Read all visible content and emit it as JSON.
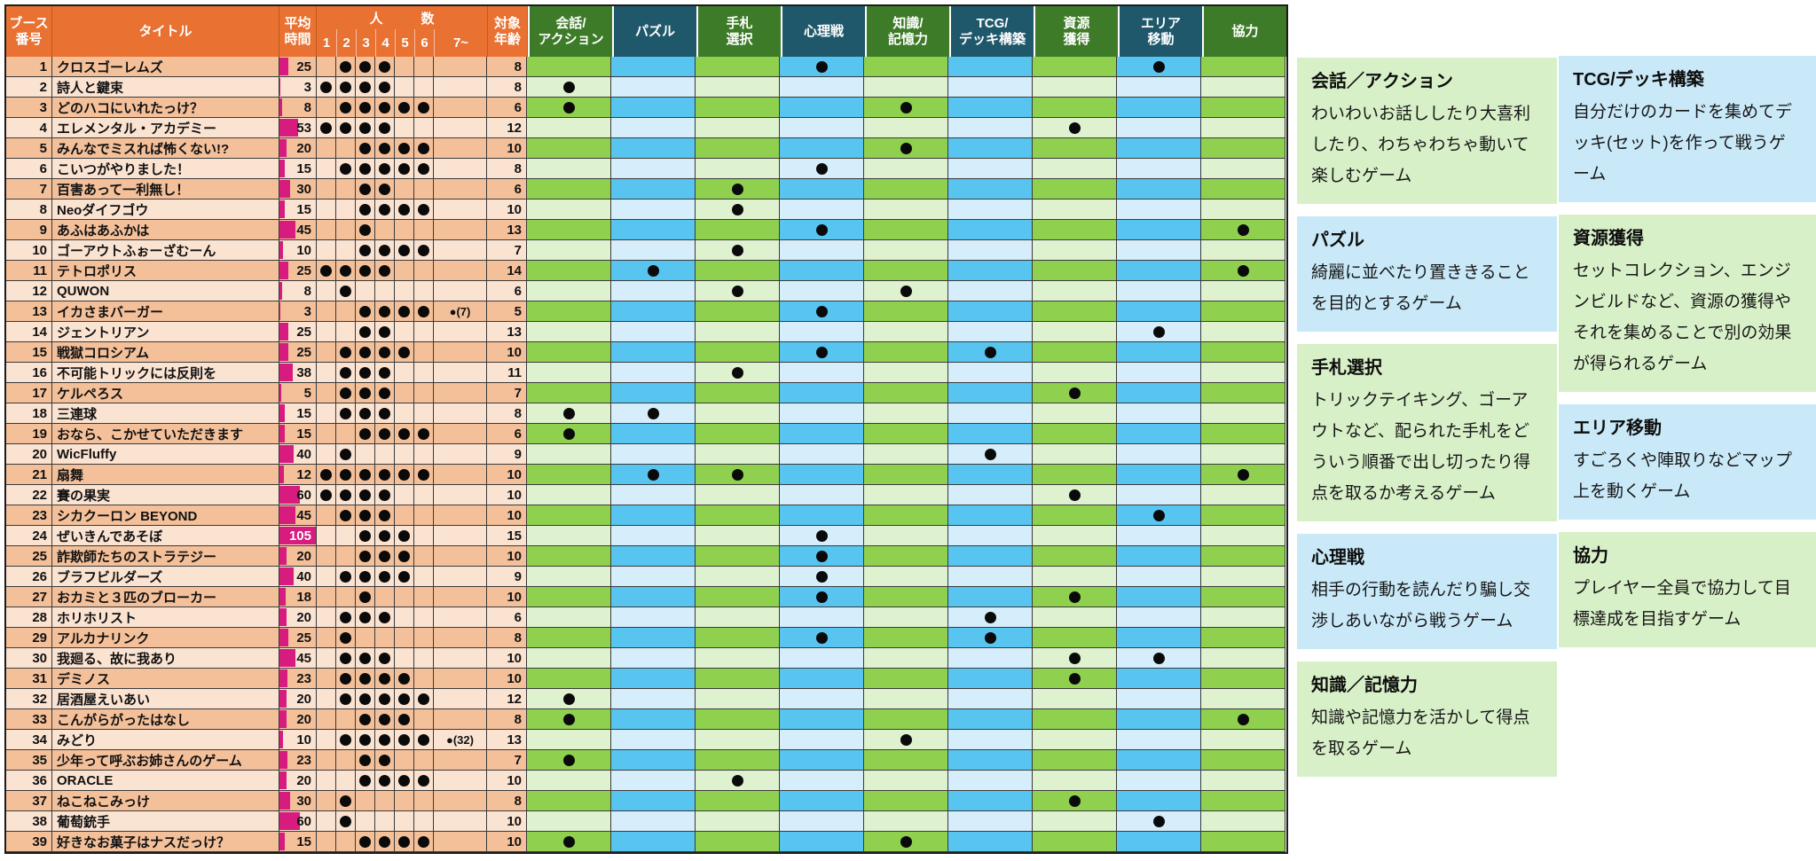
{
  "colors": {
    "header_orange": "#E97132",
    "header_green": "#3E7B28",
    "header_teal": "#20586B",
    "row_dark": "#F4C09A",
    "row_light": "#FBE3D2",
    "cell_green_dark": "#8FD14E",
    "cell_green_light": "#DFF2D0",
    "cell_blue_dark": "#57C5F0",
    "cell_blue_light": "#D6EEFB",
    "time_bar_magenta": "#D81B7F",
    "legend_green": "#D8F0C8",
    "legend_blue": "#C9E9F8"
  },
  "table": {
    "time_max": 105,
    "headers": {
      "booth": [
        "ブース",
        "番号"
      ],
      "title": [
        "タイトル"
      ],
      "time": [
        "平均",
        "時間"
      ],
      "players_group": "人　数",
      "player_cols": [
        "1",
        "2",
        "3",
        "4",
        "5",
        "6",
        "7~"
      ],
      "age": [
        "対象",
        "年齢"
      ],
      "categories": [
        {
          "lines": [
            "会話/",
            "アクション"
          ],
          "scheme": "green"
        },
        {
          "lines": [
            "パズル"
          ],
          "scheme": "blue"
        },
        {
          "lines": [
            "手札",
            "選択"
          ],
          "scheme": "green"
        },
        {
          "lines": [
            "心理戦"
          ],
          "scheme": "blue"
        },
        {
          "lines": [
            "知識/",
            "記憶力"
          ],
          "scheme": "green"
        },
        {
          "lines": [
            "TCG/",
            "デッキ構築"
          ],
          "scheme": "blue"
        },
        {
          "lines": [
            "資源",
            "獲得"
          ],
          "scheme": "green"
        },
        {
          "lines": [
            "エリア",
            "移動"
          ],
          "scheme": "blue"
        },
        {
          "lines": [
            "協力"
          ],
          "scheme": "green"
        }
      ]
    },
    "rows": [
      {
        "no": 1,
        "title": "クロスゴーレムズ",
        "time": 25,
        "p": [
          2,
          3,
          4
        ],
        "p7": "",
        "age": 8,
        "c": [
          3,
          7
        ]
      },
      {
        "no": 2,
        "title": "詩人と鍵束",
        "time": 3,
        "p": [
          1,
          2,
          3,
          4
        ],
        "p7": "",
        "age": 8,
        "c": [
          0
        ]
      },
      {
        "no": 3,
        "title": "どのハコにいれたっけ？",
        "time": 8,
        "p": [
          2,
          3,
          4,
          5,
          6
        ],
        "p7": "",
        "age": 6,
        "c": [
          0,
          4
        ]
      },
      {
        "no": 4,
        "title": "エレメンタル・アカデミー",
        "time": 53,
        "p": [
          1,
          2,
          3,
          4
        ],
        "p7": "",
        "age": 12,
        "c": [
          6
        ]
      },
      {
        "no": 5,
        "title": "みんなでミスれば怖くない!?",
        "time": 20,
        "p": [
          3,
          4,
          5,
          6
        ],
        "p7": "",
        "age": 10,
        "c": [
          4
        ]
      },
      {
        "no": 6,
        "title": "こいつがやりました！",
        "time": 15,
        "p": [
          2,
          3,
          4,
          5,
          6
        ],
        "p7": "",
        "age": 8,
        "c": [
          3
        ]
      },
      {
        "no": 7,
        "title": "百害あって一利無し！",
        "time": 30,
        "p": [
          3,
          4
        ],
        "p7": "",
        "age": 6,
        "c": [
          2
        ]
      },
      {
        "no": 8,
        "title": "Neoダイフゴウ",
        "time": 15,
        "p": [
          3,
          4,
          5,
          6
        ],
        "p7": "",
        "age": 10,
        "c": [
          2
        ]
      },
      {
        "no": 9,
        "title": "あふはあふかは",
        "time": 45,
        "p": [
          3
        ],
        "p7": "",
        "age": 13,
        "c": [
          3,
          8
        ]
      },
      {
        "no": 10,
        "title": "ゴーアウトふぉーざむーん",
        "time": 10,
        "p": [
          3,
          4,
          5,
          6
        ],
        "p7": "",
        "age": 7,
        "c": [
          2
        ]
      },
      {
        "no": 11,
        "title": "テトロポリス",
        "time": 25,
        "p": [
          1,
          2,
          3,
          4
        ],
        "p7": "",
        "age": 14,
        "c": [
          1,
          8
        ]
      },
      {
        "no": 12,
        "title": "QUWON",
        "time": 8,
        "p": [
          2
        ],
        "p7": "",
        "age": 6,
        "c": [
          2,
          4
        ]
      },
      {
        "no": 13,
        "title": "イカさまバーガー",
        "time": 3,
        "p": [
          3,
          4,
          5,
          6
        ],
        "p7": "●(7)",
        "age": 5,
        "c": [
          3
        ]
      },
      {
        "no": 14,
        "title": "ジェントリアン",
        "time": 25,
        "p": [
          3,
          4
        ],
        "p7": "",
        "age": 13,
        "c": [
          7
        ]
      },
      {
        "no": 15,
        "title": "戦獄コロシアム",
        "time": 25,
        "p": [
          2,
          3,
          4,
          5
        ],
        "p7": "",
        "age": 10,
        "c": [
          3,
          5
        ]
      },
      {
        "no": 16,
        "title": "不可能トリックには反則を",
        "time": 38,
        "p": [
          2,
          3,
          4
        ],
        "p7": "",
        "age": 11,
        "c": [
          2
        ]
      },
      {
        "no": 17,
        "title": "ケルペろス",
        "time": 5,
        "p": [
          2,
          3,
          4
        ],
        "p7": "",
        "age": 7,
        "c": [
          6
        ]
      },
      {
        "no": 18,
        "title": "三連球",
        "time": 15,
        "p": [
          2,
          3,
          4
        ],
        "p7": "",
        "age": 8,
        "c": [
          0,
          1
        ]
      },
      {
        "no": 19,
        "title": "おなら、こかせていただきます",
        "time": 15,
        "p": [
          3,
          4,
          5,
          6
        ],
        "p7": "",
        "age": 6,
        "c": [
          0
        ]
      },
      {
        "no": 20,
        "title": "WicFluffy",
        "time": 40,
        "p": [
          2
        ],
        "p7": "",
        "age": 9,
        "c": [
          5
        ]
      },
      {
        "no": 21,
        "title": "扇舞",
        "time": 12,
        "p": [
          1,
          2,
          3,
          4,
          5,
          6
        ],
        "p7": "",
        "age": 10,
        "c": [
          1,
          2,
          8
        ]
      },
      {
        "no": 22,
        "title": "賽の果実",
        "time": 60,
        "p": [
          1,
          2,
          3,
          4
        ],
        "p7": "",
        "age": 10,
        "c": [
          6
        ]
      },
      {
        "no": 23,
        "title": "シカクーロン BEYOND",
        "time": 45,
        "p": [
          2,
          3,
          4
        ],
        "p7": "",
        "age": 10,
        "c": [
          7
        ]
      },
      {
        "no": 24,
        "title": "ぜいきんであそぼ",
        "time": 105,
        "p": [
          3,
          4,
          5
        ],
        "p7": "",
        "age": 15,
        "c": [
          3
        ]
      },
      {
        "no": 25,
        "title": "詐欺師たちのストラテジー",
        "time": 20,
        "p": [
          3,
          4,
          5
        ],
        "p7": "",
        "age": 10,
        "c": [
          3
        ]
      },
      {
        "no": 26,
        "title": "ブラフビルダーズ",
        "time": 40,
        "p": [
          2,
          3,
          4,
          5
        ],
        "p7": "",
        "age": 9,
        "c": [
          3
        ]
      },
      {
        "no": 27,
        "title": "おカミと３匹のブローカー",
        "time": 18,
        "p": [
          3
        ],
        "p7": "",
        "age": 10,
        "c": [
          3,
          6
        ]
      },
      {
        "no": 28,
        "title": "ホリホリスト",
        "time": 20,
        "p": [
          2,
          3,
          4
        ],
        "p7": "",
        "age": 6,
        "c": [
          5
        ]
      },
      {
        "no": 29,
        "title": "アルカナリンク",
        "time": 25,
        "p": [
          2
        ],
        "p7": "",
        "age": 8,
        "c": [
          3,
          5
        ]
      },
      {
        "no": 30,
        "title": "我廻る、故に我あり",
        "time": 45,
        "p": [
          2,
          3,
          4
        ],
        "p7": "",
        "age": 10,
        "c": [
          6,
          7
        ]
      },
      {
        "no": 31,
        "title": "デミノス",
        "time": 23,
        "p": [
          2,
          3,
          4,
          5
        ],
        "p7": "",
        "age": 10,
        "c": [
          6
        ]
      },
      {
        "no": 32,
        "title": "居酒屋えいあい",
        "time": 20,
        "p": [
          2,
          3,
          4,
          5,
          6
        ],
        "p7": "",
        "age": 12,
        "c": [
          0
        ]
      },
      {
        "no": 33,
        "title": "こんがらがったはなし",
        "time": 20,
        "p": [
          3,
          4,
          5
        ],
        "p7": "",
        "age": 8,
        "c": [
          0,
          8
        ]
      },
      {
        "no": 34,
        "title": "みどり",
        "time": 10,
        "p": [
          2,
          3,
          4,
          5,
          6
        ],
        "p7": "●(32)",
        "age": 13,
        "c": [
          4
        ]
      },
      {
        "no": 35,
        "title": "少年って呼ぶお姉さんのゲーム",
        "time": 23,
        "p": [
          3,
          4
        ],
        "p7": "",
        "age": 7,
        "c": [
          0
        ]
      },
      {
        "no": 36,
        "title": "ORACLE",
        "time": 20,
        "p": [
          3,
          4,
          5,
          6
        ],
        "p7": "",
        "age": 10,
        "c": [
          2
        ]
      },
      {
        "no": 37,
        "title": "ねこねこみっけ",
        "time": 30,
        "p": [
          2
        ],
        "p7": "",
        "age": 8,
        "c": [
          6
        ]
      },
      {
        "no": 38,
        "title": "葡萄銃手",
        "time": 60,
        "p": [
          2
        ],
        "p7": "",
        "age": 10,
        "c": [
          7
        ]
      },
      {
        "no": 39,
        "title": "好きなお菓子はナスだっけ？",
        "time": 15,
        "p": [
          3,
          4,
          5,
          6
        ],
        "p7": "",
        "age": 10,
        "c": [
          0,
          4
        ]
      }
    ]
  },
  "legend": {
    "left": [
      {
        "scheme": "green",
        "title": "会話／アクション",
        "body": "わいわいお話ししたり大喜利したり、わちゃわちゃ動いて楽しむゲーム"
      },
      {
        "scheme": "blue",
        "title": "パズル",
        "body": "綺麗に並べたり置ききることを目的とするゲーム"
      },
      {
        "scheme": "green",
        "title": "手札選択",
        "body": "トリックテイキング、ゴーアウトなど、配られた手札をどういう順番で出し切ったり得点を取るか考えるゲーム"
      },
      {
        "scheme": "blue",
        "title": "心理戦",
        "body": "相手の行動を読んだり騙し交渉しあいながら戦うゲーム"
      },
      {
        "scheme": "green",
        "title": "知識／記憶力",
        "body": "知識や記憶力を活かして得点を取るゲーム"
      }
    ],
    "right": [
      {
        "scheme": "blue",
        "title": "TCG/デッキ構築",
        "body": "自分だけのカードを集めてデッキ(セット)を作って戦うゲーム"
      },
      {
        "scheme": "green",
        "title": "資源獲得",
        "body": "セットコレクション、エンジンビルドなど、資源の獲得やそれを集めることで別の効果が得られるゲーム"
      },
      {
        "scheme": "blue",
        "title": "エリア移動",
        "body": "すごろくや陣取りなどマップ上を動くゲーム"
      },
      {
        "scheme": "green",
        "title": "協力",
        "body": "プレイヤー全員で協力して目標達成を目指すゲーム"
      }
    ]
  }
}
